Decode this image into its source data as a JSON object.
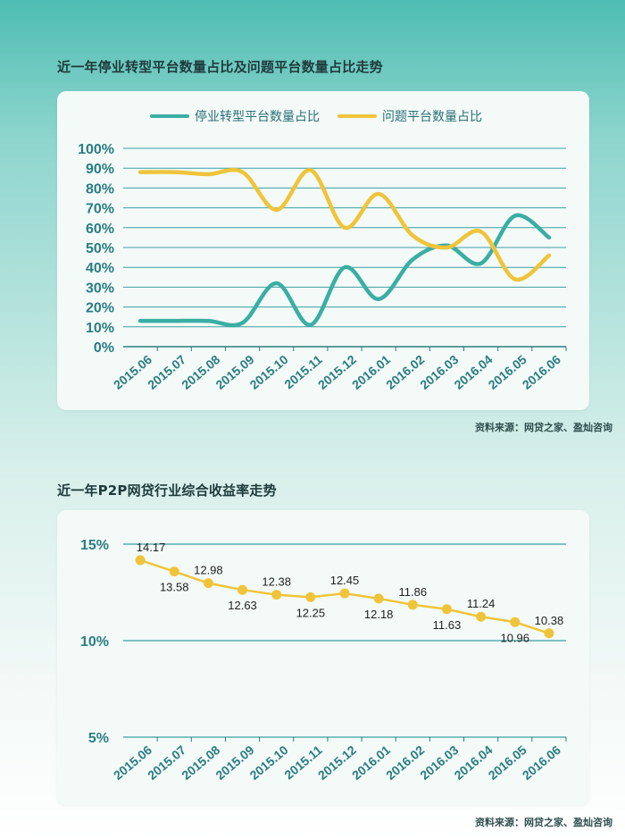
{
  "chart1": {
    "title": "近一年停业转型平台数量占比及问题平台数量占比走势",
    "source": "资料来源：网贷之家、盈灿咨询",
    "chart_data": {
      "type": "line",
      "categories": [
        "2015.06",
        "2015.07",
        "2015.08",
        "2015.09",
        "2015.10",
        "2015.11",
        "2015.12",
        "2016.01",
        "2016.02",
        "2016.03",
        "2016.04",
        "2016.05",
        "2016.06"
      ],
      "y_ticks": [
        "0%",
        "10%",
        "20%",
        "30%",
        "40%",
        "50%",
        "60%",
        "70%",
        "80%",
        "90%",
        "100%"
      ],
      "ylim": [
        0,
        100
      ],
      "legend": "top",
      "grid": true,
      "series": [
        {
          "name": "停业转型平台数量占比",
          "color": "#3aaea4",
          "values": [
            13,
            13,
            13,
            12,
            32,
            11,
            40,
            24,
            44,
            51,
            42,
            66,
            55
          ]
        },
        {
          "name": "问题平台数量占比",
          "color": "#f0c43a",
          "values": [
            88,
            88,
            87,
            88,
            69,
            89,
            60,
            77,
            56,
            50,
            58,
            34,
            46
          ]
        }
      ]
    }
  },
  "chart2": {
    "title": "近一年P2P网贷行业综合收益率走势",
    "source": "资料来源：网贷之家、盈灿咨询",
    "chart_data": {
      "type": "line",
      "categories": [
        "2015.06",
        "2015.07",
        "2015.08",
        "2015.09",
        "2015.10",
        "2015.11",
        "2015.12",
        "2016.01",
        "2016.02",
        "2016.03",
        "2016.04",
        "2016.05",
        "2016.06"
      ],
      "y_ticks": [
        "5%",
        "10%",
        "15%"
      ],
      "ylim": [
        5,
        15
      ],
      "grid": true,
      "series": [
        {
          "color": "#f0c43a",
          "values": [
            14.17,
            13.58,
            12.98,
            12.63,
            12.38,
            12.25,
            12.45,
            12.18,
            11.86,
            11.63,
            11.24,
            10.96,
            10.38
          ],
          "labels": [
            "14.17",
            "13.58",
            "12.98",
            "12.63",
            "12.38",
            "12.25",
            "12.45",
            "12.18",
            "11.86",
            "11.63",
            "11.24",
            "10.96",
            "10.38"
          ]
        }
      ]
    }
  }
}
